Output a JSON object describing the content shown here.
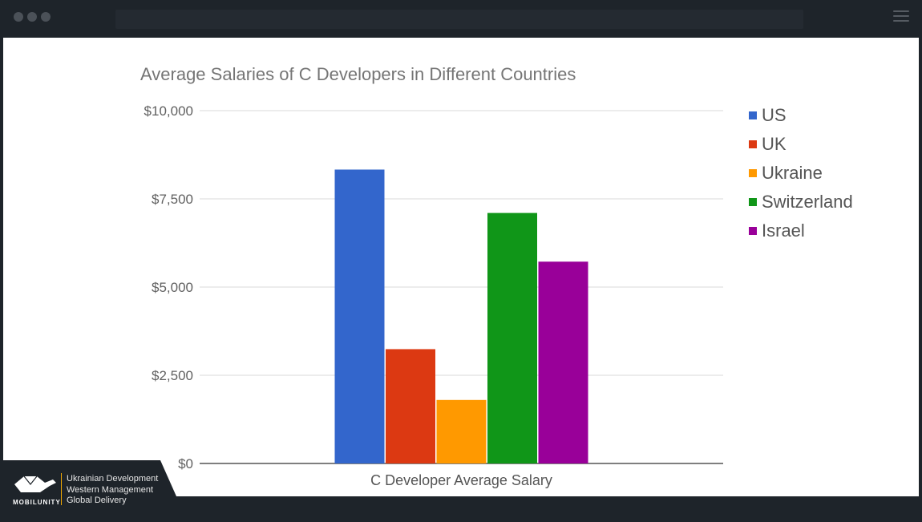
{
  "window": {
    "address_bar": "",
    "menu_icon": "hamburger-menu-icon"
  },
  "chart_data": {
    "type": "bar",
    "title": "Average Salaries of C Developers in Different Countries",
    "categories": [
      "C Developer Average Salary"
    ],
    "xlabel": "C Developer Average Salary",
    "ylabel": "",
    "ylim": [
      0,
      10000
    ],
    "yticks": [
      0,
      2500,
      5000,
      7500,
      10000
    ],
    "ytick_labels": [
      "$0",
      "$2,500",
      "$5,000",
      "$7,500",
      "$10,000"
    ],
    "grid": true,
    "legend_position": "right",
    "series": [
      {
        "name": "US",
        "values": [
          8330
        ],
        "color": "#3366cc"
      },
      {
        "name": "UK",
        "values": [
          3240
        ],
        "color": "#dc3912"
      },
      {
        "name": "Ukraine",
        "values": [
          1800
        ],
        "color": "#ff9900"
      },
      {
        "name": "Switzerland",
        "values": [
          7100
        ],
        "color": "#109618"
      },
      {
        "name": "Israel",
        "values": [
          5720
        ],
        "color": "#990099"
      }
    ]
  },
  "branding": {
    "name": "MOBILUNITY",
    "lines": [
      "Ukrainian Development",
      "Western Management",
      "Global Delivery"
    ],
    "accent_color": "#f2a900"
  }
}
